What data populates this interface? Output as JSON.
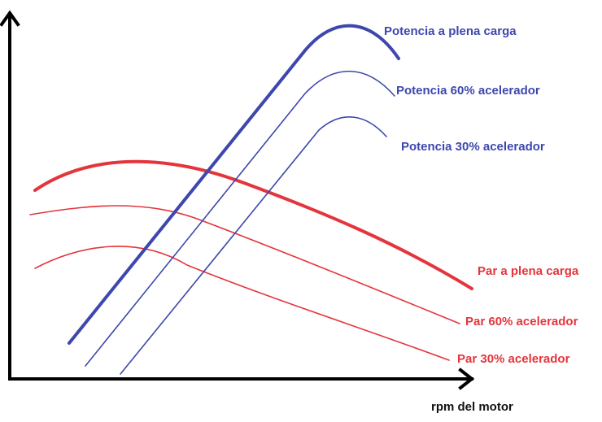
{
  "x_axis_label": "rpm del motor",
  "curves": {
    "power_full": "Potencia a plena carga",
    "power_60": "Potencia 60% acelerador",
    "power_30": "Potencia 30% acelerador",
    "torque_full": "Par a plena carga",
    "torque_60": "Par 60% acelerador",
    "torque_30": "Par 30% acelerador"
  },
  "colors": {
    "power": "#3d47ad",
    "torque": "#e4353c",
    "axes": "#000000"
  }
}
